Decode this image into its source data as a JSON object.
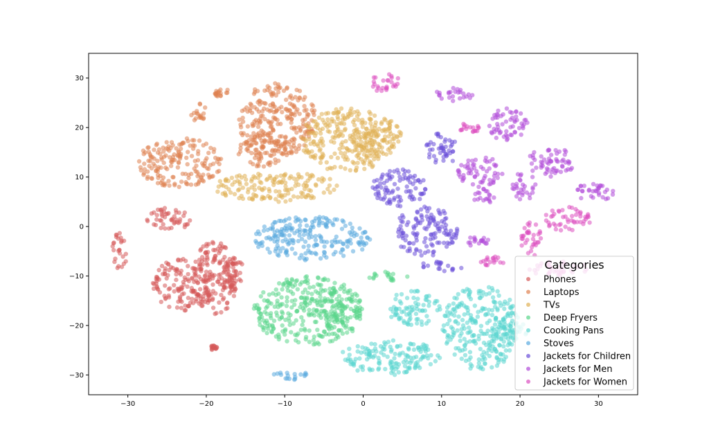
{
  "chart_data": {
    "type": "scatter",
    "title": "",
    "xlabel": "",
    "ylabel": "",
    "xlim": [
      -35,
      35
    ],
    "ylim": [
      -34,
      35
    ],
    "xticks": [
      -30,
      -20,
      -10,
      0,
      10,
      20,
      30
    ],
    "yticks": [
      -30,
      -20,
      -10,
      0,
      10,
      20,
      30
    ],
    "xtick_labels": [
      "−30",
      "−20",
      "−10",
      "0",
      "10",
      "20",
      "30"
    ],
    "ytick_labels": [
      "−30",
      "−20",
      "−10",
      "0",
      "10",
      "20",
      "30"
    ],
    "grid": false,
    "legend": {
      "title": "Categories",
      "placement": "lower-right"
    },
    "series": [
      {
        "name": "Phones",
        "color": "#d65a5a",
        "clusters": [
          {
            "x": [
              -28,
              -22
            ],
            "y": [
              -1,
              4
            ]
          },
          {
            "x": [
              -27,
              -19
            ],
            "y": [
              -17,
              -6
            ]
          },
          {
            "x": [
              -22,
              -16
            ],
            "y": [
              -18,
              -3
            ]
          },
          {
            "x": [
              -19,
              -15
            ],
            "y": [
              -13,
              -6
            ]
          },
          {
            "x": [
              -32,
              -30
            ],
            "y": [
              -9,
              -1
            ]
          },
          {
            "x": [
              -19.5,
              -18.5
            ],
            "y": [
              -25,
              -24
            ]
          }
        ]
      },
      {
        "name": "Laptops",
        "color": "#df8250",
        "clusters": [
          {
            "x": [
              -29,
              -18
            ],
            "y": [
              8,
              18
            ]
          },
          {
            "x": [
              -16,
              -6
            ],
            "y": [
              14,
              29
            ]
          },
          {
            "x": [
              -19,
              -17
            ],
            "y": [
              26,
              28
            ]
          },
          {
            "x": [
              -22,
              -20
            ],
            "y": [
              21,
              25
            ]
          },
          {
            "x": [
              -16,
              -9
            ],
            "y": [
              12,
              19
            ]
          }
        ]
      },
      {
        "name": "TVs",
        "color": "#e0b155",
        "clusters": [
          {
            "x": [
              -19,
              -3
            ],
            "y": [
              5,
              11
            ]
          },
          {
            "x": [
              -8,
              4
            ],
            "y": [
              11,
              24
            ]
          },
          {
            "x": [
              -2,
              5
            ],
            "y": [
              15,
              22
            ]
          }
        ]
      },
      {
        "name": "Deep Fryers",
        "color": "#5ad58a",
        "clusters": [
          {
            "x": [
              -14,
              0
            ],
            "y": [
              -24,
              -10
            ]
          },
          {
            "x": [
              0,
              6
            ],
            "y": [
              -11,
              -9
            ]
          },
          {
            "x": [
              -6,
              0
            ],
            "y": [
              -20,
              -13
            ]
          }
        ]
      },
      {
        "name": "Cooking Pans",
        "color": "#5ad6d0",
        "clusters": [
          {
            "x": [
              3,
              10
            ],
            "y": [
              -20,
              -13
            ]
          },
          {
            "x": [
              -3,
              10
            ],
            "y": [
              -30,
              -23
            ]
          },
          {
            "x": [
              10,
              20
            ],
            "y": [
              -29,
              -12
            ]
          },
          {
            "x": [
              16,
              21
            ],
            "y": [
              -23,
              -19
            ]
          }
        ]
      },
      {
        "name": "Stoves",
        "color": "#5aa9df",
        "clusters": [
          {
            "x": [
              -14,
              1
            ],
            "y": [
              -7,
              2
            ]
          },
          {
            "x": [
              -12,
              -7
            ],
            "y": [
              -31,
              -29
            ]
          }
        ]
      },
      {
        "name": "Jackets for Children",
        "color": "#6a4fd9",
        "clusters": [
          {
            "x": [
              1,
              8
            ],
            "y": [
              4,
              12
            ]
          },
          {
            "x": [
              4,
              12
            ],
            "y": [
              -6,
              4
            ]
          },
          {
            "x": [
              7,
              13
            ],
            "y": [
              -9,
              -7
            ]
          },
          {
            "x": [
              8,
              12
            ],
            "y": [
              12,
              19
            ]
          }
        ]
      },
      {
        "name": "Jackets for Men",
        "color": "#b04ad9",
        "clusters": [
          {
            "x": [
              9,
              14
            ],
            "y": [
              25,
              28
            ]
          },
          {
            "x": [
              16,
              21
            ],
            "y": [
              17,
              24
            ]
          },
          {
            "x": [
              19,
              22
            ],
            "y": [
              5,
              11
            ]
          },
          {
            "x": [
              21,
              27
            ],
            "y": [
              10,
              16
            ]
          },
          {
            "x": [
              27,
              32
            ],
            "y": [
              5,
              9
            ]
          },
          {
            "x": [
              12,
              18
            ],
            "y": [
              8,
              14
            ]
          },
          {
            "x": [
              14,
              17
            ],
            "y": [
              4,
              8
            ]
          },
          {
            "x": [
              13,
              16
            ],
            "y": [
              -4,
              -2
            ]
          }
        ]
      },
      {
        "name": "Jackets for Women",
        "color": "#dc4fc0",
        "clusters": [
          {
            "x": [
              1,
              5
            ],
            "y": [
              27,
              31
            ]
          },
          {
            "x": [
              20,
              23
            ],
            "y": [
              -6,
              1
            ]
          },
          {
            "x": [
              23,
              29
            ],
            "y": [
              -1,
              4
            ]
          },
          {
            "x": [
              21,
              29
            ],
            "y": [
              -10,
              -7
            ]
          },
          {
            "x": [
              15,
              18
            ],
            "y": [
              -8,
              -6
            ]
          },
          {
            "x": [
              12,
              15
            ],
            "y": [
              19,
              21
            ]
          }
        ]
      }
    ]
  }
}
